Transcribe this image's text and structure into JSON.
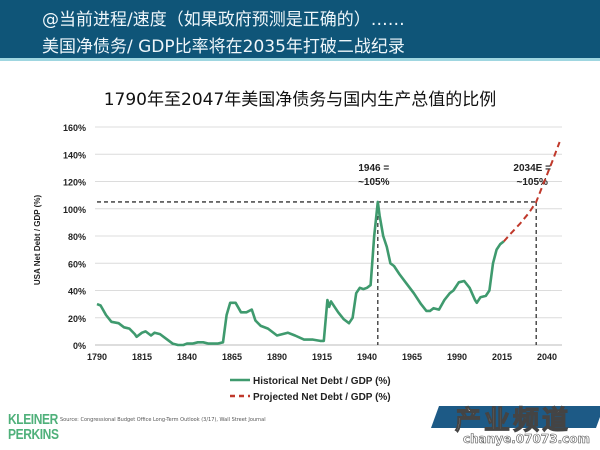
{
  "header": {
    "line1": "@当前进程/速度（如果政府预测是正确的）……",
    "line2": "美国净债务/ GDP比率将在2035年打破二战纪录"
  },
  "footer": {
    "source": "Source: Congressional Budget Office Long-Term Outlook (3/17), Wall Street Journal",
    "logo": "KLEINER PERKINS",
    "logo_line1": "KLEINER",
    "logo_line2": "PERKINS",
    "watermark": "产业频道",
    "watermark_url": "chanye.07073.com"
  },
  "chart_data": {
    "type": "line",
    "title": "1790年至2047年美国净债务与国内生产总值的比例",
    "xlabel": "",
    "ylabel": "USA Net Debt / GDP (%)",
    "xlim": [
      1790,
      2047
    ],
    "ylim": [
      0,
      160
    ],
    "xticks": [
      "1790",
      "1815",
      "1840",
      "1865",
      "1890",
      "1915",
      "1940",
      "1965",
      "1990",
      "2015",
      "2040"
    ],
    "yticks": [
      "0%",
      "20%",
      "40%",
      "60%",
      "80%",
      "100%",
      "120%",
      "140%",
      "160%"
    ],
    "grid": true,
    "legend_position": "bottom",
    "reference_level": 105,
    "annotations": [
      {
        "year": 1946,
        "line1": "1946 =",
        "line2": "~105%"
      },
      {
        "year": 2034,
        "line1": "2034E =",
        "line2": "~105%"
      }
    ],
    "series": [
      {
        "name": "Historical Net Debt / GDP (%)",
        "color": "#3f9a6e",
        "style": "solid",
        "x": [
          1790,
          1792,
          1795,
          1798,
          1802,
          1805,
          1808,
          1811,
          1812,
          1815,
          1817,
          1820,
          1822,
          1825,
          1828,
          1832,
          1835,
          1838,
          1840,
          1843,
          1846,
          1849,
          1852,
          1857,
          1860,
          1862,
          1864,
          1867,
          1870,
          1873,
          1876,
          1878,
          1881,
          1885,
          1890,
          1893,
          1896,
          1900,
          1905,
          1910,
          1914,
          1916,
          1918,
          1919,
          1920,
          1922,
          1924,
          1927,
          1930,
          1932,
          1934,
          1936,
          1938,
          1940,
          1942,
          1944,
          1946,
          1947,
          1949,
          1951,
          1953,
          1955,
          1958,
          1962,
          1966,
          1970,
          1973,
          1975,
          1977,
          1980,
          1983,
          1986,
          1988,
          1991,
          1994,
          1997,
          2000,
          2001,
          2003,
          2006,
          2008,
          2010,
          2012,
          2014,
          2016
        ],
        "y": [
          30,
          29,
          22,
          17,
          16,
          13,
          12,
          8,
          6,
          9,
          10,
          7,
          9,
          8,
          5,
          1,
          0,
          0,
          1,
          1,
          2,
          2,
          1,
          1,
          2,
          22,
          31,
          31,
          24,
          24,
          26,
          18,
          14,
          12,
          7,
          8,
          9,
          7,
          4,
          4,
          3,
          3,
          33,
          28,
          32,
          28,
          24,
          19,
          16,
          20,
          38,
          42,
          41,
          42,
          44,
          80,
          105,
          95,
          80,
          72,
          60,
          58,
          52,
          45,
          38,
          30,
          25,
          25,
          27,
          26,
          33,
          38,
          40,
          46,
          47,
          42,
          33,
          31,
          35,
          36,
          40,
          60,
          70,
          74,
          76
        ]
      },
      {
        "name": "Projected Net Debt / GDP (%)",
        "color": "#c0392b",
        "style": "dashed",
        "x": [
          2016,
          2020,
          2025,
          2030,
          2034,
          2037,
          2040,
          2043,
          2047
        ],
        "y": [
          76,
          82,
          89,
          97,
          105,
          115,
          125,
          135,
          149
        ]
      }
    ]
  }
}
